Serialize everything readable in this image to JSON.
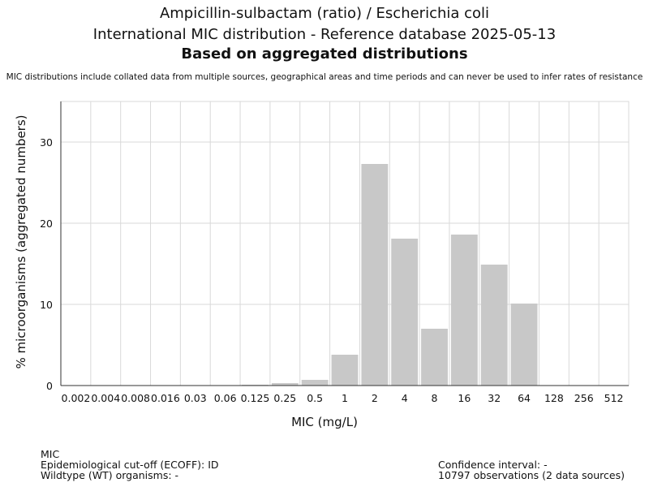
{
  "chart_data": {
    "type": "bar",
    "title_lines": [
      "Ampicillin-sulbactam (ratio) / Escherichia coli",
      "International MIC distribution - Reference database 2025-05-13",
      "Based on aggregated distributions"
    ],
    "subtitle": "MIC distributions include collated data from multiple sources, geographical areas and time periods and can never be used to infer rates of resistance",
    "xlabel": "MIC (mg/L)",
    "ylabel": "% microorganisms (aggregated numbers)",
    "categories": [
      "0.002",
      "0.004",
      "0.008",
      "0.016",
      "0.03",
      "0.06",
      "0.125",
      "0.25",
      "0.5",
      "1",
      "2",
      "4",
      "8",
      "16",
      "32",
      "64",
      "128",
      "256",
      "512"
    ],
    "values": [
      0,
      0,
      0,
      0,
      0,
      0,
      0.1,
      0.3,
      0.7,
      3.8,
      27.3,
      18.1,
      7.0,
      18.6,
      14.9,
      10.1,
      0,
      0,
      0
    ],
    "ylim": [
      0,
      35
    ],
    "yticks": [
      0,
      10,
      20,
      30
    ],
    "grid": true,
    "bar_color": "#c8c8c8"
  },
  "footer": {
    "mic_label": "MIC",
    "ecoff": "Epidemiological cut-off (ECOFF): ID",
    "wildtype": "Wildtype (WT) organisms:  -",
    "confidence": "Confidence interval: -",
    "observations": "10797 observations (2 data sources)"
  }
}
